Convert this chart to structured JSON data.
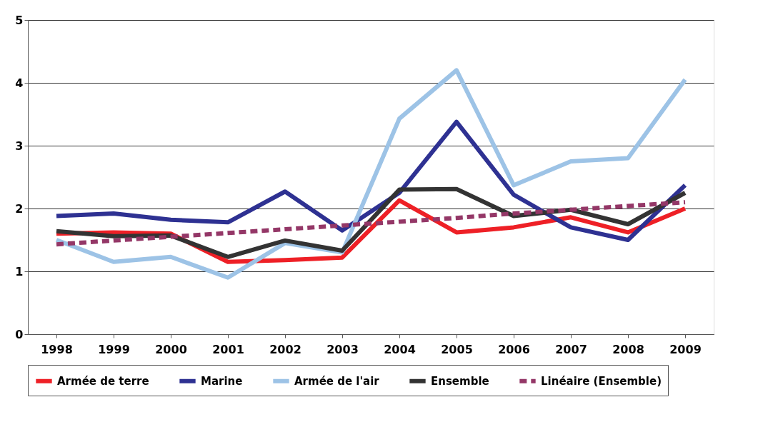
{
  "chart_data": {
    "type": "line",
    "categories": [
      "1998",
      "1999",
      "2000",
      "2001",
      "2002",
      "2003",
      "2004",
      "2005",
      "2006",
      "2007",
      "2008",
      "2009"
    ],
    "ylim": [
      0,
      5
    ],
    "yticks": [
      0,
      1,
      2,
      3,
      4,
      5
    ],
    "grid": "y",
    "legend": "bottom",
    "line_style": "solid",
    "series": [
      {
        "name": "Armée de terre",
        "color": "#ee2026",
        "values": [
          1.6,
          1.62,
          1.6,
          1.15,
          1.18,
          1.22,
          2.13,
          1.62,
          1.7,
          1.86,
          1.62,
          2.0
        ]
      },
      {
        "name": "Marine",
        "color": "#2e3192",
        "values": [
          1.88,
          1.92,
          1.82,
          1.78,
          2.27,
          1.65,
          2.25,
          3.38,
          2.22,
          1.7,
          1.5,
          2.37
        ]
      },
      {
        "name": "Armée de l'air",
        "color": "#9dc3e6",
        "values": [
          1.5,
          1.15,
          1.23,
          0.9,
          1.45,
          1.3,
          3.43,
          4.2,
          2.37,
          2.75,
          2.8,
          4.05
        ]
      },
      {
        "name": "Ensemble",
        "color": "#333333",
        "values": [
          1.64,
          1.56,
          1.57,
          1.23,
          1.49,
          1.33,
          2.3,
          2.31,
          1.88,
          1.98,
          1.75,
          2.25
        ]
      },
      {
        "name": "Linéaire (Ensemble)",
        "color": "#943767",
        "line_style": "dashed",
        "values": [
          1.43,
          1.49,
          1.55,
          1.61,
          1.67,
          1.73,
          1.79,
          1.85,
          1.92,
          1.98,
          2.04,
          2.1
        ]
      }
    ]
  }
}
